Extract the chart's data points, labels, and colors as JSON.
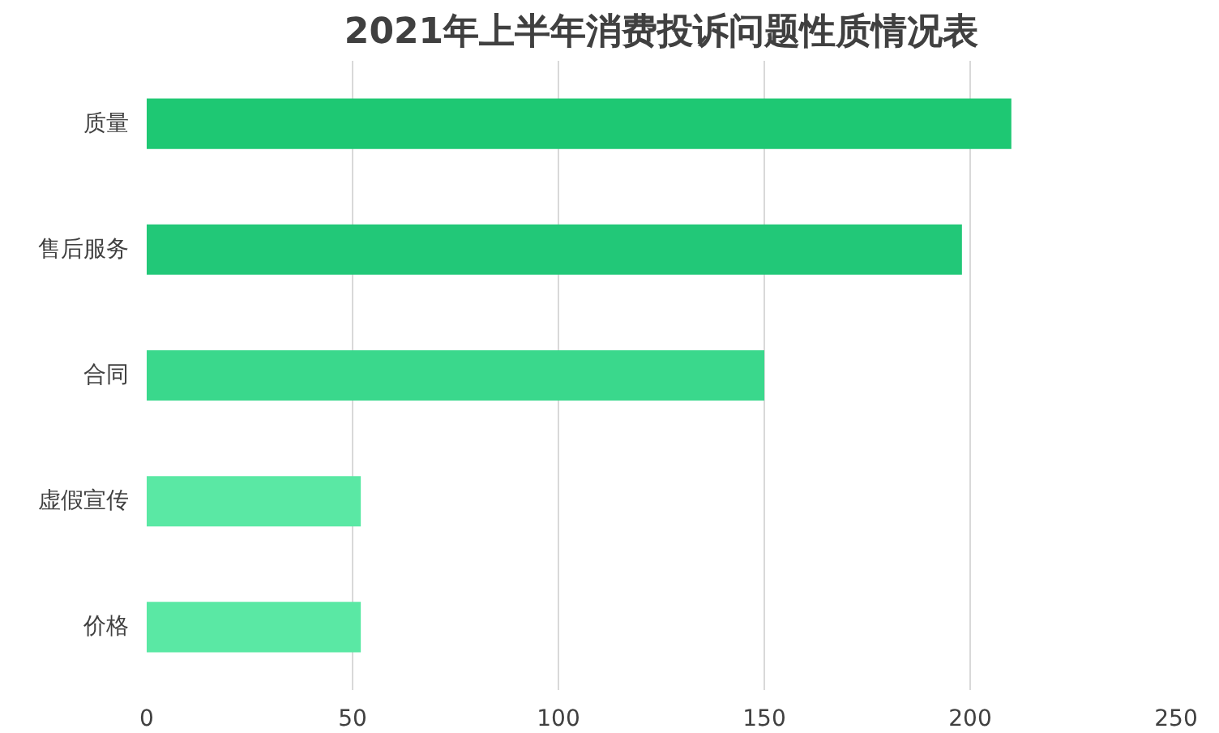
{
  "chart_data": {
    "type": "bar",
    "orientation": "horizontal",
    "title": "2021年上半年消费投诉问题性质情况表",
    "categories": [
      "质量",
      "售后服务",
      "合同",
      "虚假宣传",
      "价格"
    ],
    "values": [
      210,
      198,
      150,
      52,
      52
    ],
    "colors": [
      "#1ec873",
      "#22c878",
      "#3ad88c",
      "#5ae8a4",
      "#5ae8a4"
    ],
    "xlim": [
      0,
      250
    ],
    "xticks": [
      0,
      50,
      100,
      150,
      200,
      250
    ],
    "grid": "x"
  }
}
